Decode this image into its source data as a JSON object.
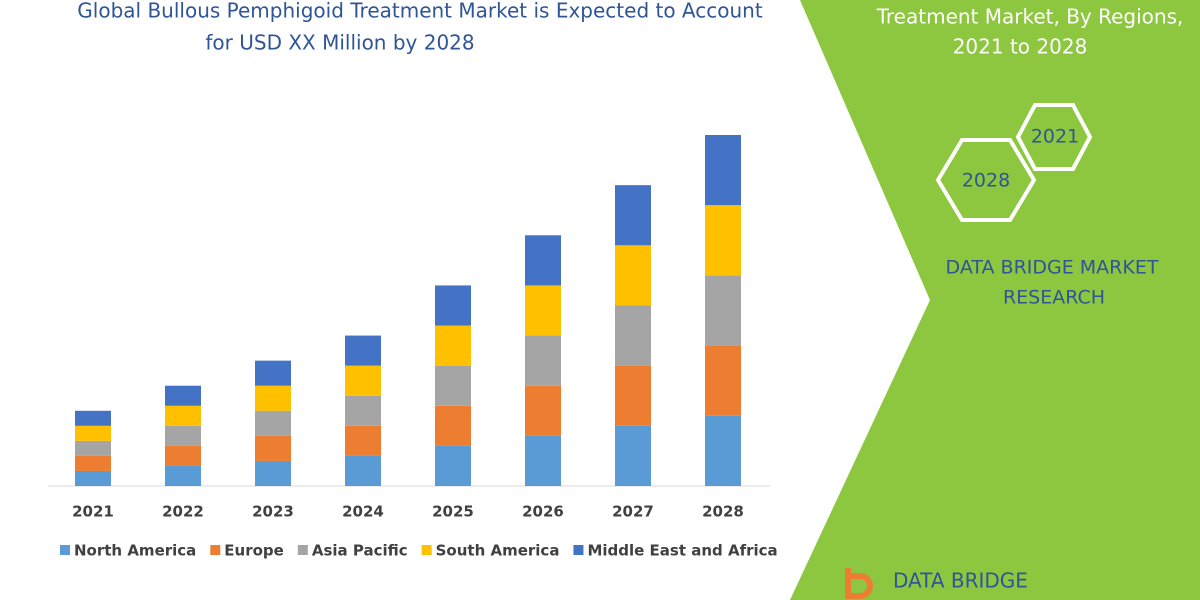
{
  "chart_data": {
    "type": "stacked-bar",
    "title": "Global Bullous Pemphigoid Treatment Market is Expected to Account",
    "subtitle": "for USD XX Million by 2028",
    "categories": [
      "2021",
      "2022",
      "2023",
      "2024",
      "2025",
      "2026",
      "2027",
      "2028"
    ],
    "series": [
      {
        "name": "North America",
        "color": "#5b9bd5",
        "values": [
          3,
          4,
          5,
          6,
          8,
          10,
          12,
          14
        ]
      },
      {
        "name": "Europe",
        "color": "#ed7d31",
        "values": [
          3,
          4,
          5,
          6,
          8,
          10,
          12,
          14
        ]
      },
      {
        "name": "Asia Pacific",
        "color": "#a5a5a5",
        "values": [
          3,
          4,
          5,
          6,
          8,
          10,
          12,
          14
        ]
      },
      {
        "name": "South America",
        "color": "#ffc000",
        "values": [
          3,
          4,
          5,
          6,
          8,
          10,
          12,
          14
        ]
      },
      {
        "name": "Middle East and Africa",
        "color": "#4472c4",
        "values": [
          3,
          4,
          5,
          6,
          8,
          10,
          12,
          14
        ]
      }
    ]
  },
  "side_panel": {
    "heading_lines": [
      "Treatment Market, By Regions,",
      "2021 to 2028"
    ],
    "hex_labels": [
      "2021",
      "2028"
    ],
    "brand_lines": [
      "DATA BRIDGE MARKET",
      "RESEARCH"
    ],
    "logo_text": "DATA BRIDGE"
  }
}
